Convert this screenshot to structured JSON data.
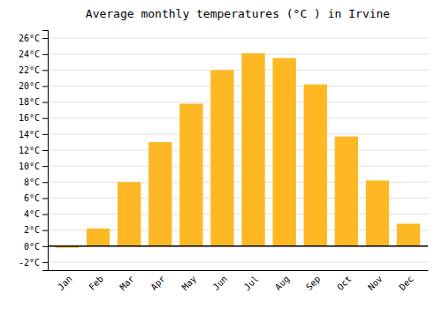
{
  "chart_data": {
    "type": "bar",
    "title": "Average monthly temperatures (°C ) in Irvine",
    "categories": [
      "Jan",
      "Feb",
      "Mar",
      "Apr",
      "May",
      "Jun",
      "Jul",
      "Aug",
      "Sep",
      "Oct",
      "Nov",
      "Dec"
    ],
    "values": [
      -0.2,
      2.2,
      8.0,
      13.0,
      17.8,
      22.0,
      24.1,
      23.5,
      20.2,
      13.7,
      8.2,
      2.8
    ],
    "color": "#FDB823",
    "ylim": [
      -3,
      27
    ],
    "yticks": [
      {
        "value": -2,
        "label": "-2°C"
      },
      {
        "value": 0,
        "label": "0°C"
      },
      {
        "value": 2,
        "label": "2°C"
      },
      {
        "value": 4,
        "label": "4°C"
      },
      {
        "value": 6,
        "label": "6°C"
      },
      {
        "value": 8,
        "label": "8°C"
      },
      {
        "value": 10,
        "label": "10°C"
      },
      {
        "value": 12,
        "label": "12°C"
      },
      {
        "value": 14,
        "label": "14°C"
      },
      {
        "value": 16,
        "label": "16°C"
      },
      {
        "value": 18,
        "label": "18°C"
      },
      {
        "value": 20,
        "label": "20°C"
      },
      {
        "value": 22,
        "label": "22°C"
      },
      {
        "value": 24,
        "label": "24°C"
      },
      {
        "value": 26,
        "label": "26°C"
      }
    ],
    "grid": true
  }
}
